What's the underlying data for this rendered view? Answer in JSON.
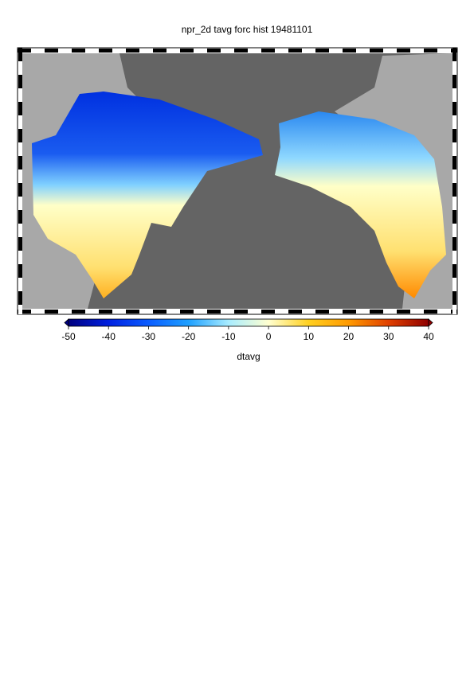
{
  "title": "npr_2d tavg forc hist 19481101",
  "colorbar": {
    "range": [
      -50,
      40
    ],
    "ticks": [
      -50,
      -40,
      -30,
      -20,
      -10,
      0,
      10,
      20,
      30,
      40
    ],
    "colors": [
      "#000080",
      "#0020e0",
      "#0a5cff",
      "#1ea0ff",
      "#a8ecff",
      "#ffffd0",
      "#ffd020",
      "#ff9a00",
      "#e04000",
      "#900000"
    ],
    "label": "dtavg"
  }
}
